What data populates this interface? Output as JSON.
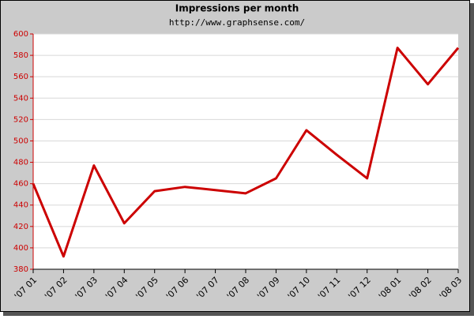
{
  "chart_data": {
    "type": "line",
    "title": "Impressions per month",
    "subtitle": "http://www.graphsense.com/",
    "categories": [
      "'07 01",
      "'07 02",
      "'07 03",
      "'07 04",
      "'07 05",
      "'07 06",
      "'07 07",
      "'07 08",
      "'07 09",
      "'07 10",
      "'07 11",
      "'07 12",
      "'08 01",
      "'08 02",
      "'08 03"
    ],
    "series": [
      {
        "name": "Impressions",
        "color": "#cc0000",
        "values": [
          460,
          392,
          477,
          423,
          453,
          457,
          454,
          451,
          465,
          510,
          487,
          465,
          587,
          553,
          587
        ]
      }
    ],
    "ylim": [
      380,
      600
    ],
    "yticks": [
      380,
      400,
      420,
      440,
      460,
      480,
      500,
      520,
      540,
      560,
      580,
      600
    ],
    "grid": true
  }
}
